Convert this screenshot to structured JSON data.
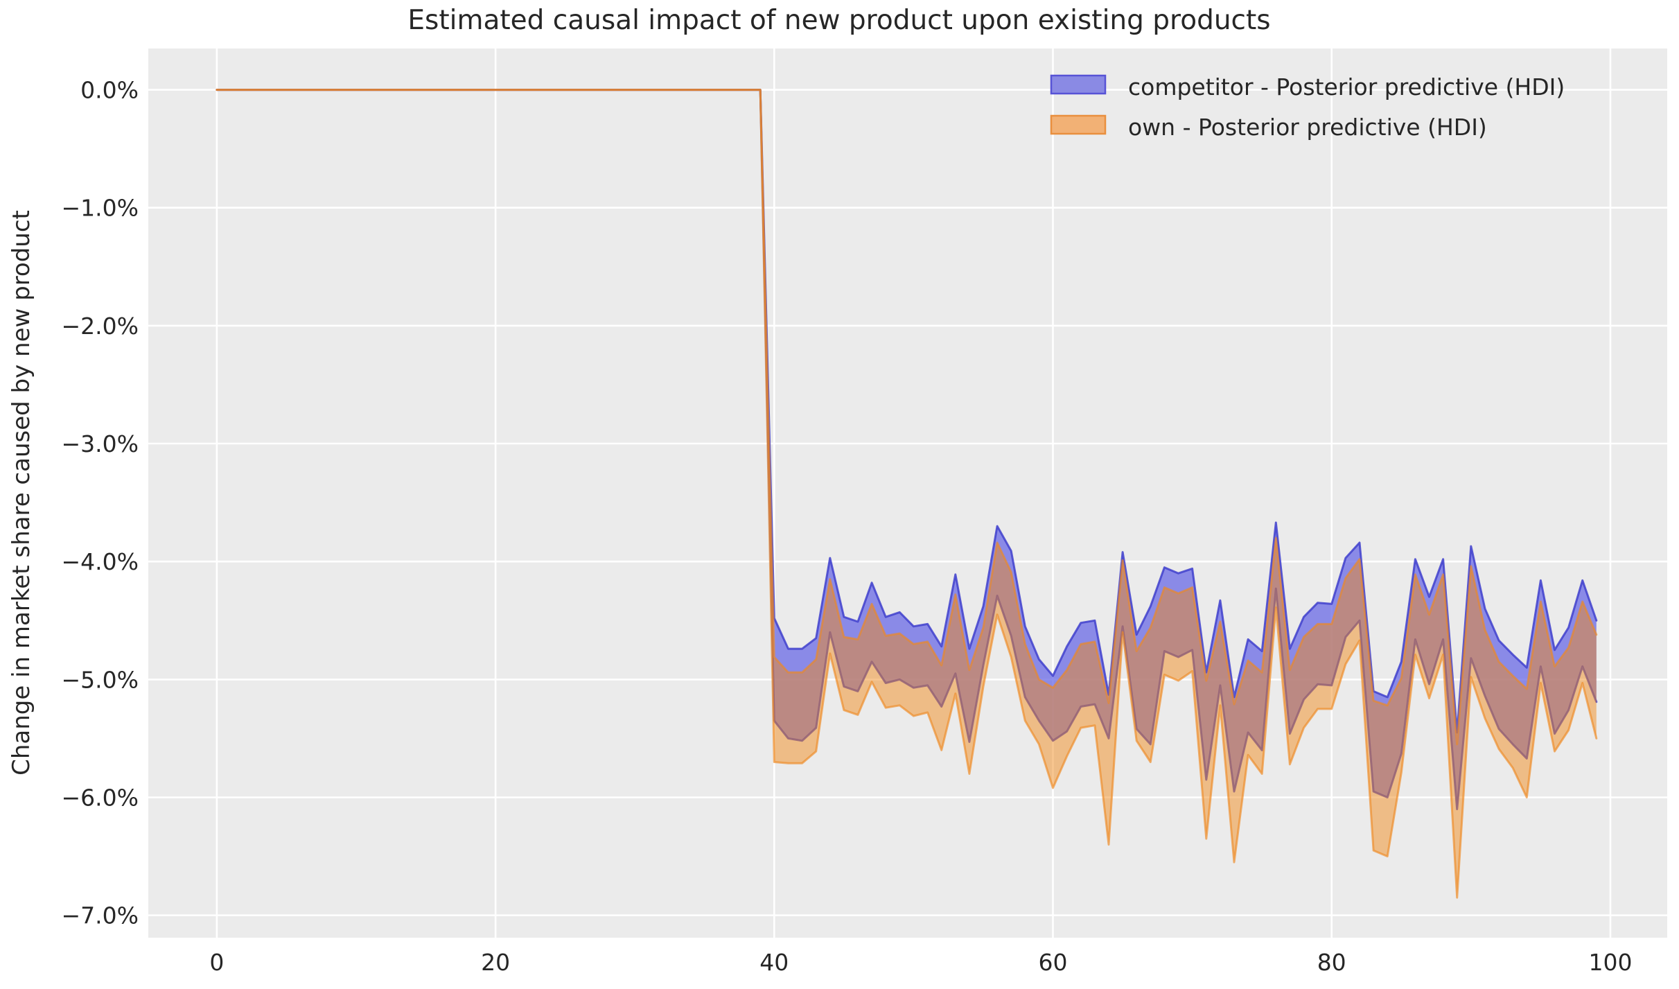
{
  "chart_data": {
    "type": "area",
    "title": "Estimated causal impact of new product upon existing products",
    "xlabel": "",
    "ylabel": "Change in market share caused by new product",
    "background": {
      "figure": "#ffffff",
      "axes": "#ebebeb"
    },
    "grid": {
      "on": true,
      "color": "#ffffff",
      "width": 2.6
    },
    "text_color": "#262626",
    "x": {
      "lim": [
        -4.92,
        104.08
      ],
      "ticks": [
        0,
        20,
        40,
        60,
        80,
        100
      ],
      "tick_labels": [
        "0",
        "20",
        "40",
        "60",
        "80",
        "100"
      ]
    },
    "y": {
      "lim": [
        -7.19,
        0.35
      ],
      "ticks": [
        0,
        -1,
        -2,
        -3,
        -4,
        -5,
        -6,
        -7
      ],
      "tick_labels": [
        "0.0%",
        "−1.0%",
        "−2.0%",
        "−3.0%",
        "−4.0%",
        "−5.0%",
        "−6.0%",
        "−7.0%"
      ]
    },
    "legend": {
      "position": "upper right",
      "entries": [
        {
          "label": "competitor - Posterior predictive (HDI)",
          "swatch_fill": "#8a8ae4",
          "swatch_edge": "#5753d6"
        },
        {
          "label": "own - Posterior predictive (HDI)",
          "swatch_fill": "#f2b175",
          "swatch_edge": "#e98f3e"
        }
      ]
    },
    "series": [
      {
        "name": "competitor - Posterior predictive (HDI)",
        "kind": "hdi_band",
        "fill": "#6464e4",
        "fill_opacity": 0.72,
        "edge": "#4040cd",
        "edge_opacity": 0.85,
        "edge_width": 3,
        "x": [
          0,
          1,
          2,
          3,
          4,
          5,
          6,
          7,
          8,
          9,
          10,
          11,
          12,
          13,
          14,
          15,
          16,
          17,
          18,
          19,
          20,
          21,
          22,
          23,
          24,
          25,
          26,
          27,
          28,
          29,
          30,
          31,
          32,
          33,
          34,
          35,
          36,
          37,
          38,
          39,
          40,
          41,
          42,
          43,
          44,
          45,
          46,
          47,
          48,
          49,
          50,
          51,
          52,
          53,
          54,
          55,
          56,
          57,
          58,
          59,
          60,
          61,
          62,
          63,
          64,
          65,
          66,
          67,
          68,
          69,
          70,
          71,
          72,
          73,
          74,
          75,
          76,
          77,
          78,
          79,
          80,
          81,
          82,
          83,
          84,
          85,
          86,
          87,
          88,
          89,
          90,
          91,
          92,
          93,
          94,
          95,
          96,
          97,
          98,
          99
        ],
        "hi": [
          0,
          0,
          0,
          0,
          0,
          0,
          0,
          0,
          0,
          0,
          0,
          0,
          0,
          0,
          0,
          0,
          0,
          0,
          0,
          0,
          0,
          0,
          0,
          0,
          0,
          0,
          0,
          0,
          0,
          0,
          0,
          0,
          0,
          0,
          0,
          0,
          0,
          0,
          0,
          0,
          -4.48,
          -4.74,
          -4.74,
          -4.65,
          -3.97,
          -4.47,
          -4.51,
          -4.18,
          -4.47,
          -4.43,
          -4.55,
          -4.53,
          -4.72,
          -4.11,
          -4.74,
          -4.38,
          -3.7,
          -3.91,
          -4.55,
          -4.83,
          -4.97,
          -4.72,
          -4.52,
          -4.5,
          -5.13,
          -3.92,
          -4.62,
          -4.38,
          -4.05,
          -4.1,
          -4.06,
          -4.94,
          -4.33,
          -5.15,
          -4.66,
          -4.76,
          -3.67,
          -4.74,
          -4.47,
          -4.35,
          -4.36,
          -3.97,
          -3.84,
          -5.1,
          -5.15,
          -4.85,
          -3.98,
          -4.3,
          -3.98,
          -5.45,
          -3.87,
          -4.4,
          -4.67,
          -4.79,
          -4.9,
          -4.16,
          -4.75,
          -4.56,
          -4.16,
          -4.5
        ],
        "lo": [
          0,
          0,
          0,
          0,
          0,
          0,
          0,
          0,
          0,
          0,
          0,
          0,
          0,
          0,
          0,
          0,
          0,
          0,
          0,
          0,
          0,
          0,
          0,
          0,
          0,
          0,
          0,
          0,
          0,
          0,
          0,
          0,
          0,
          0,
          0,
          0,
          0,
          0,
          0,
          0,
          -5.35,
          -5.5,
          -5.52,
          -5.41,
          -4.6,
          -5.06,
          -5.1,
          -4.85,
          -5.03,
          -5.0,
          -5.07,
          -5.05,
          -5.23,
          -4.95,
          -5.53,
          -4.88,
          -4.29,
          -4.63,
          -5.15,
          -5.35,
          -5.52,
          -5.44,
          -5.23,
          -5.21,
          -5.5,
          -4.55,
          -5.42,
          -5.55,
          -4.76,
          -4.81,
          -4.75,
          -5.85,
          -5.05,
          -5.95,
          -5.45,
          -5.6,
          -4.23,
          -5.46,
          -5.17,
          -5.04,
          -5.05,
          -4.64,
          -4.5,
          -5.95,
          -6.0,
          -5.63,
          -4.66,
          -5.04,
          -4.66,
          -6.1,
          -4.82,
          -5.14,
          -5.42,
          -5.55,
          -5.67,
          -4.89,
          -5.46,
          -5.26,
          -4.89,
          -5.19
        ]
      },
      {
        "name": "own - Posterior predictive (HDI)",
        "kind": "hdi_band",
        "fill": "#f08818",
        "fill_opacity": 0.48,
        "edge": "#ee8822",
        "edge_opacity": 0.65,
        "edge_width": 3,
        "x": [
          0,
          1,
          2,
          3,
          4,
          5,
          6,
          7,
          8,
          9,
          10,
          11,
          12,
          13,
          14,
          15,
          16,
          17,
          18,
          19,
          20,
          21,
          22,
          23,
          24,
          25,
          26,
          27,
          28,
          29,
          30,
          31,
          32,
          33,
          34,
          35,
          36,
          37,
          38,
          39,
          40,
          41,
          42,
          43,
          44,
          45,
          46,
          47,
          48,
          49,
          50,
          51,
          52,
          53,
          54,
          55,
          56,
          57,
          58,
          59,
          60,
          61,
          62,
          63,
          64,
          65,
          66,
          67,
          68,
          69,
          70,
          71,
          72,
          73,
          74,
          75,
          76,
          77,
          78,
          79,
          80,
          81,
          82,
          83,
          84,
          85,
          86,
          87,
          88,
          89,
          90,
          91,
          92,
          93,
          94,
          95,
          96,
          97,
          98,
          99
        ],
        "hi": [
          0,
          0,
          0,
          0,
          0,
          0,
          0,
          0,
          0,
          0,
          0,
          0,
          0,
          0,
          0,
          0,
          0,
          0,
          0,
          0,
          0,
          0,
          0,
          0,
          0,
          0,
          0,
          0,
          0,
          0,
          0,
          0,
          0,
          0,
          0,
          0,
          0,
          0,
          0,
          0,
          -4.81,
          -4.94,
          -4.94,
          -4.83,
          -4.15,
          -4.64,
          -4.66,
          -4.36,
          -4.63,
          -4.61,
          -4.7,
          -4.68,
          -4.88,
          -4.28,
          -4.92,
          -4.56,
          -3.84,
          -4.09,
          -4.7,
          -5.0,
          -5.07,
          -4.92,
          -4.7,
          -4.68,
          -5.2,
          -3.99,
          -4.76,
          -4.56,
          -4.22,
          -4.27,
          -4.22,
          -5.01,
          -4.51,
          -5.21,
          -4.84,
          -4.94,
          -3.8,
          -4.92,
          -4.64,
          -4.53,
          -4.53,
          -4.14,
          -3.98,
          -5.18,
          -5.22,
          -4.99,
          -4.11,
          -4.45,
          -4.11,
          -5.55,
          -4.04,
          -4.58,
          -4.85,
          -4.97,
          -5.08,
          -4.34,
          -4.89,
          -4.73,
          -4.34,
          -4.62
        ],
        "lo": [
          0,
          0,
          0,
          0,
          0,
          0,
          0,
          0,
          0,
          0,
          0,
          0,
          0,
          0,
          0,
          0,
          0,
          0,
          0,
          0,
          0,
          0,
          0,
          0,
          0,
          0,
          0,
          0,
          0,
          0,
          0,
          0,
          0,
          0,
          0,
          0,
          0,
          0,
          0,
          0,
          -5.7,
          -5.71,
          -5.71,
          -5.61,
          -4.78,
          -5.26,
          -5.3,
          -5.02,
          -5.24,
          -5.22,
          -5.31,
          -5.28,
          -5.6,
          -5.12,
          -5.8,
          -5.06,
          -4.45,
          -4.81,
          -5.35,
          -5.55,
          -5.92,
          -5.65,
          -5.41,
          -5.39,
          -6.4,
          -4.6,
          -5.52,
          -5.7,
          -4.96,
          -5.01,
          -4.93,
          -6.35,
          -5.22,
          -6.55,
          -5.64,
          -5.8,
          -4.39,
          -5.72,
          -5.41,
          -5.25,
          -5.25,
          -4.87,
          -4.67,
          -6.45,
          -6.5,
          -5.79,
          -4.79,
          -5.16,
          -4.79,
          -6.85,
          -4.98,
          -5.33,
          -5.59,
          -5.75,
          -6.0,
          -5.03,
          -5.61,
          -5.43,
          -5.03,
          -5.5
        ]
      }
    ]
  }
}
